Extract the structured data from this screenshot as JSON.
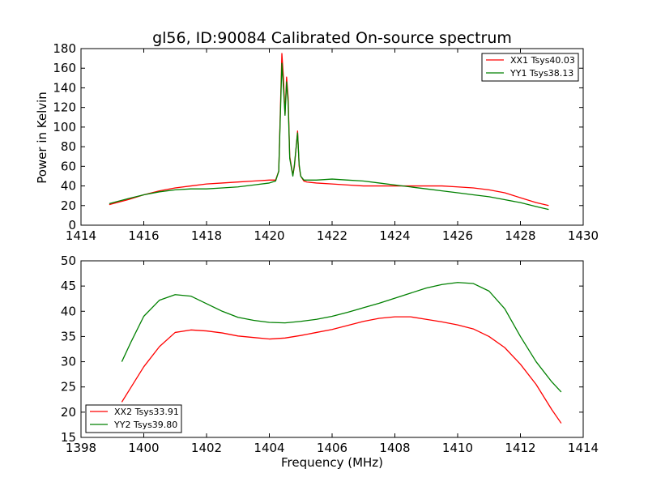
{
  "chart_data": [
    {
      "type": "line",
      "title": "gl56, ID:90084 Calibrated On-source spectrum",
      "xlabel": "",
      "ylabel": "Power in Kelvin",
      "xlim": [
        1414,
        1430
      ],
      "ylim": [
        0,
        180
      ],
      "xticks": [
        1414,
        1416,
        1418,
        1420,
        1422,
        1424,
        1426,
        1428,
        1430
      ],
      "yticks": [
        0,
        20,
        40,
        60,
        80,
        100,
        120,
        140,
        160,
        180
      ],
      "legend_position": "top-right",
      "grid": false,
      "series": [
        {
          "name": "XX1 Tsys40.03",
          "color": "#ff0000",
          "x": [
            1414.9,
            1415.5,
            1416.0,
            1416.5,
            1417.0,
            1417.5,
            1418.0,
            1418.5,
            1419.0,
            1419.5,
            1420.0,
            1420.2,
            1420.3,
            1420.4,
            1420.45,
            1420.5,
            1420.55,
            1420.6,
            1420.65,
            1420.75,
            1420.8,
            1420.9,
            1420.95,
            1421.0,
            1421.1,
            1421.2,
            1421.5,
            1422.0,
            1422.5,
            1423.0,
            1423.5,
            1424.0,
            1424.5,
            1425.0,
            1425.5,
            1426.0,
            1426.5,
            1427.0,
            1427.5,
            1428.0,
            1428.5,
            1428.9
          ],
          "y": [
            21,
            26,
            31,
            35,
            38,
            40,
            42,
            43,
            44,
            45,
            46,
            46,
            55,
            175,
            150,
            113,
            151,
            130,
            70,
            51,
            60,
            96,
            60,
            50,
            45,
            44,
            43,
            42,
            41,
            40,
            40,
            40,
            40,
            40,
            40,
            39,
            38,
            36,
            33,
            28,
            23,
            20
          ]
        },
        {
          "name": "YY1 Tsys38.13",
          "color": "#008000",
          "x": [
            1414.9,
            1415.5,
            1416.0,
            1416.5,
            1417.0,
            1417.5,
            1418.0,
            1418.5,
            1419.0,
            1419.5,
            1420.0,
            1420.2,
            1420.3,
            1420.4,
            1420.45,
            1420.5,
            1420.55,
            1420.6,
            1420.65,
            1420.75,
            1420.8,
            1420.9,
            1420.95,
            1421.0,
            1421.1,
            1421.2,
            1421.5,
            1422.0,
            1422.5,
            1423.0,
            1423.5,
            1424.0,
            1424.5,
            1425.0,
            1425.5,
            1426.0,
            1426.5,
            1427.0,
            1427.5,
            1428.0,
            1428.5,
            1428.9
          ],
          "y": [
            22,
            27,
            31,
            34,
            36,
            37,
            37,
            38,
            39,
            41,
            43,
            45,
            55,
            165,
            140,
            112,
            146,
            125,
            68,
            50,
            62,
            94,
            62,
            50,
            46,
            46,
            46,
            47,
            46,
            45,
            43,
            41,
            39,
            37,
            35,
            33,
            31,
            29,
            26,
            23,
            19,
            16
          ]
        }
      ]
    },
    {
      "type": "line",
      "title": "",
      "xlabel": "Frequency (MHz)",
      "ylabel": "",
      "xlim": [
        1398,
        1414
      ],
      "ylim": [
        15,
        50
      ],
      "xticks": [
        1398,
        1400,
        1402,
        1404,
        1406,
        1408,
        1410,
        1412,
        1414
      ],
      "yticks": [
        15,
        20,
        25,
        30,
        35,
        40,
        45,
        50
      ],
      "legend_position": "bottom-left",
      "grid": false,
      "series": [
        {
          "name": "XX2 Tsys33.91",
          "color": "#ff0000",
          "x": [
            1399.3,
            1399.6,
            1400.0,
            1400.5,
            1401.0,
            1401.5,
            1402.0,
            1402.5,
            1403.0,
            1403.5,
            1404.0,
            1404.5,
            1405.0,
            1405.5,
            1406.0,
            1406.5,
            1407.0,
            1407.5,
            1408.0,
            1408.5,
            1409.0,
            1409.5,
            1410.0,
            1410.5,
            1411.0,
            1411.5,
            1412.0,
            1412.5,
            1413.0,
            1413.3
          ],
          "y": [
            22,
            25,
            29,
            33,
            35.8,
            36.3,
            36.1,
            35.7,
            35.1,
            34.8,
            34.5,
            34.7,
            35.2,
            35.8,
            36.4,
            37.2,
            38.0,
            38.6,
            38.9,
            38.9,
            38.4,
            37.9,
            37.3,
            36.5,
            35.0,
            32.8,
            29.5,
            25.5,
            20.5,
            17.8
          ]
        },
        {
          "name": "YY2 Tsys39.80",
          "color": "#008000",
          "x": [
            1399.3,
            1399.6,
            1400.0,
            1400.5,
            1401.0,
            1401.5,
            1402.0,
            1402.5,
            1403.0,
            1403.5,
            1404.0,
            1404.5,
            1405.0,
            1405.5,
            1406.0,
            1406.5,
            1407.0,
            1407.5,
            1408.0,
            1408.5,
            1409.0,
            1409.5,
            1410.0,
            1410.5,
            1411.0,
            1411.5,
            1412.0,
            1412.5,
            1413.0,
            1413.3
          ],
          "y": [
            30,
            34,
            39,
            42.2,
            43.3,
            43.0,
            41.5,
            40.0,
            38.8,
            38.2,
            37.8,
            37.7,
            38.0,
            38.4,
            39.0,
            39.8,
            40.7,
            41.6,
            42.6,
            43.6,
            44.6,
            45.3,
            45.7,
            45.5,
            44.0,
            40.5,
            35.0,
            30.0,
            26.0,
            24.0
          ]
        }
      ]
    }
  ]
}
